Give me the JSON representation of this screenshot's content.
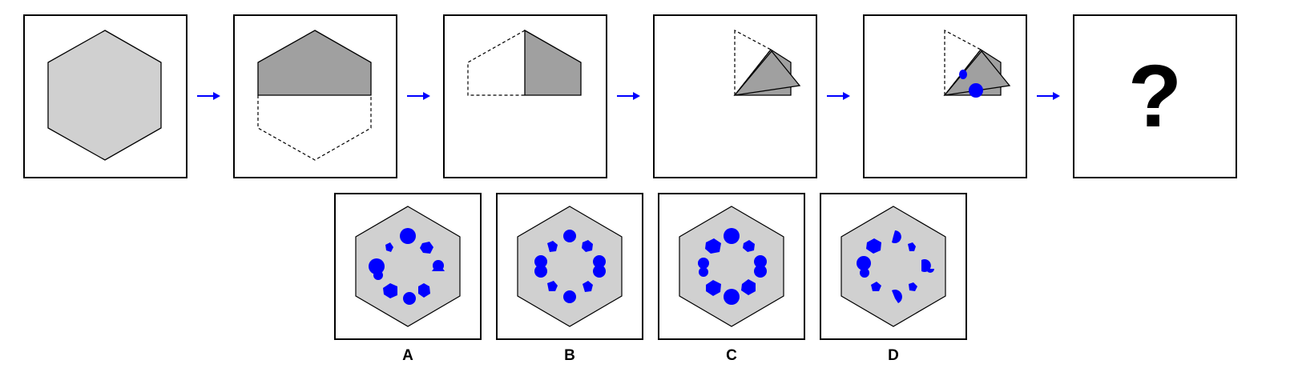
{
  "puzzle": {
    "sequence_placeholder": "?",
    "colors": {
      "hexagon_fill": "#d0d0d0",
      "folded_fill": "#a0a0a0",
      "hole_color": "#0000ff",
      "arrow_color": "#0000ff",
      "outline": "#000000"
    },
    "options": [
      {
        "label": "A"
      },
      {
        "label": "B"
      },
      {
        "label": "C"
      },
      {
        "label": "D"
      }
    ]
  }
}
